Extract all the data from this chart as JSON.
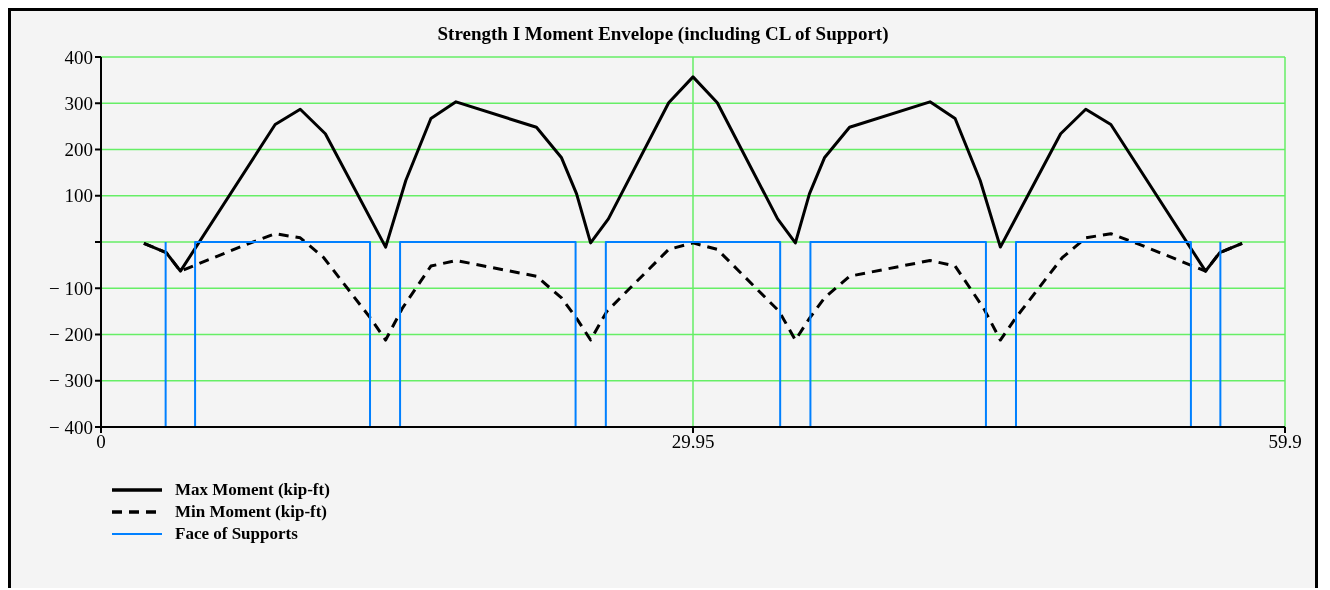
{
  "chart_data": {
    "type": "line",
    "title": "Strength I Moment Envelope (including CL of Support)",
    "xlim": [
      0,
      59.9
    ],
    "xticks": [
      0,
      29.95,
      59.9
    ],
    "ylim": [
      -400,
      400
    ],
    "yticks": [
      {
        "value": -400,
        "label": "− 400"
      },
      {
        "value": -300,
        "label": "− 300"
      },
      {
        "value": -200,
        "label": "− 200"
      },
      {
        "value": -100,
        "label": "− 100"
      },
      {
        "value": 0,
        "label": null
      },
      100,
      200,
      300,
      400
    ],
    "grid": true,
    "legend": "bottom left",
    "series": [
      {
        "name": "Max Moment (kip-ft)",
        "color": "#000000",
        "line_style": "solid",
        "x": [
          2.17,
          3.3,
          4.02,
          8.81,
          10.08,
          11.35,
          14.4,
          15.42,
          16.69,
          17.96,
          22.03,
          23.3,
          24.06,
          24.77,
          25.67,
          28.72,
          29.95,
          31.18,
          34.23,
          35.13,
          35.84,
          36.6,
          37.87,
          41.94,
          43.21,
          44.48,
          45.5,
          48.55,
          49.82,
          51.09,
          55.88,
          56.6,
          57.73
        ],
        "values": [
          -3,
          -23,
          -63,
          254,
          287,
          234,
          -11,
          133,
          267,
          303,
          248,
          182,
          104,
          -2,
          50,
          301,
          357,
          301,
          50,
          -2,
          104,
          182,
          248,
          303,
          267,
          133,
          -11,
          234,
          287,
          254,
          -63,
          -23,
          -3
        ]
      },
      {
        "name": "Min Moment (kip-ft)",
        "color": "#000000",
        "line_style": "dashed",
        "x": [
          2.17,
          3.3,
          4.02,
          7.37,
          8.81,
          10.08,
          11.27,
          13.64,
          14.4,
          15.25,
          16.69,
          17.96,
          22.03,
          23.3,
          24.06,
          24.77,
          25.59,
          28.72,
          29.95,
          31.18,
          34.31,
          35.13,
          35.84,
          36.6,
          37.87,
          41.94,
          43.21,
          44.65,
          45.5,
          46.26,
          48.63,
          49.82,
          51.09,
          52.53,
          55.88,
          56.6,
          57.73
        ],
        "values": [
          -3,
          -23,
          -63,
          -5,
          18,
          9,
          -34,
          -165,
          -212,
          -143,
          -52,
          -40,
          -74,
          -121,
          -165,
          -212,
          -150,
          -16,
          -2,
          -16,
          -150,
          -212,
          -165,
          -121,
          -74,
          -40,
          -52,
          -143,
          -212,
          -165,
          -34,
          9,
          18,
          -5,
          -63,
          -23,
          -3
        ]
      },
      {
        "name": "Face of Supports",
        "color": "#0080ff",
        "line_style": "solid",
        "x": [
          3.27,
          3.27
        ],
        "values": [
          -400,
          0
        ]
      },
      {
        "color": "#0080ff",
        "line_style": "solid",
        "x": [
          4.76,
          4.76,
          13.61,
          13.61
        ],
        "values": [
          -400,
          0,
          0,
          -400
        ]
      },
      {
        "color": "#0080ff",
        "line_style": "solid",
        "x": [
          15.13,
          15.13,
          24.01,
          24.01
        ],
        "values": [
          -400,
          0,
          0,
          -400
        ]
      },
      {
        "color": "#0080ff",
        "line_style": "solid",
        "x": [
          25.54,
          25.54,
          34.36,
          34.36
        ],
        "values": [
          -400,
          0,
          0,
          -400
        ]
      },
      {
        "color": "#0080ff",
        "line_style": "solid",
        "x": [
          35.89,
          35.89,
          44.77,
          44.77
        ],
        "values": [
          -400,
          0,
          0,
          -400
        ]
      },
      {
        "color": "#0080ff",
        "line_style": "solid",
        "x": [
          46.29,
          46.29,
          55.14,
          55.14
        ],
        "values": [
          -400,
          0,
          0,
          -400
        ]
      },
      {
        "color": "#0080ff",
        "line_style": "solid",
        "x": [
          56.63,
          56.63
        ],
        "values": [
          0,
          -400
        ]
      }
    ]
  }
}
